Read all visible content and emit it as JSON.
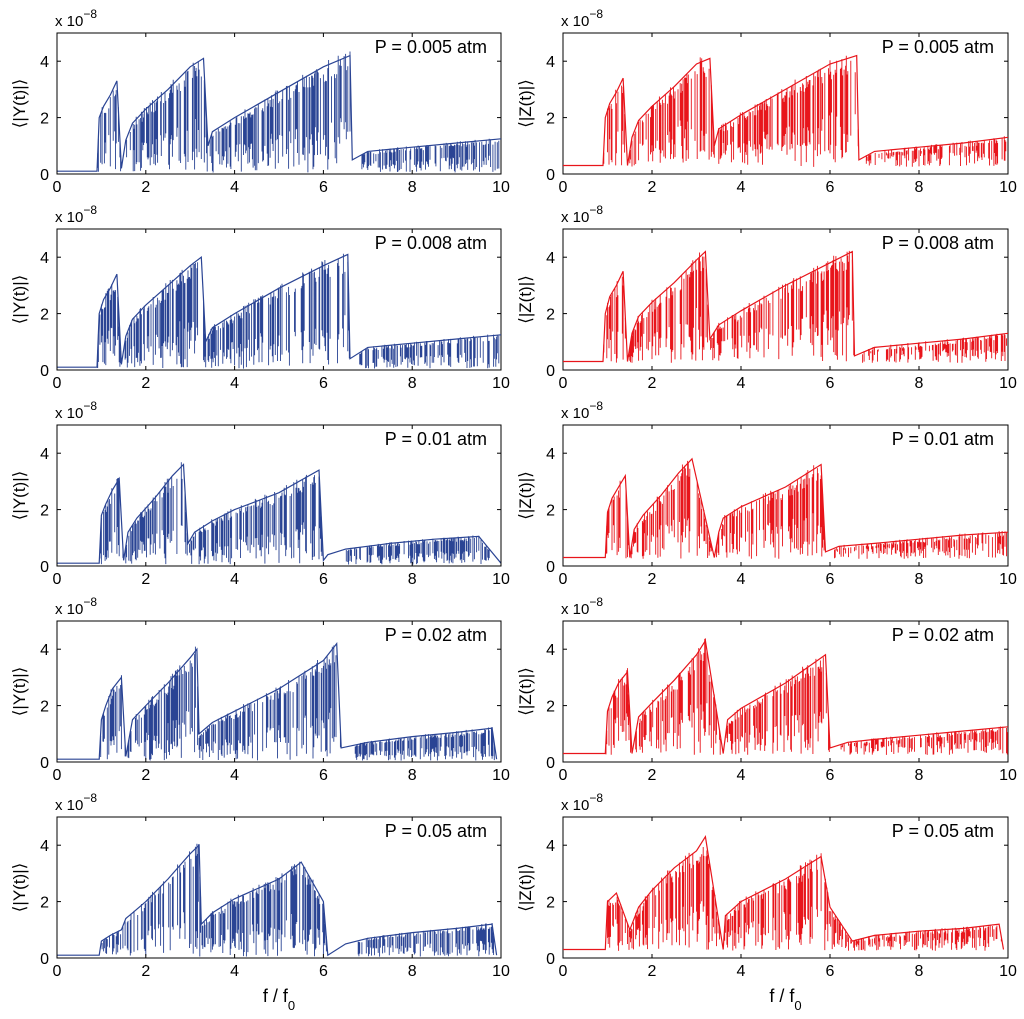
{
  "figure": {
    "xlabel": "f / f",
    "xlabel_sub": "0",
    "exponent_base": "x 10",
    "exponent_power": "−8",
    "colors": {
      "Y": "#2a4494",
      "Z": "#e8151b",
      "axis": "#000000"
    }
  },
  "chart_data": [
    {
      "type": "line",
      "column": "left",
      "row": 0,
      "ylabel": "⟨|Y(t)|⟩",
      "annotation": "P = 0.005 atm",
      "xlim": [
        0,
        10
      ],
      "ylim": [
        0,
        5
      ],
      "xticks": [
        0,
        2,
        4,
        6,
        8,
        10
      ],
      "yticks": [
        0,
        2,
        4
      ],
      "y_multiplier": "1e-8",
      "series": [
        {
          "color": "#2a4494",
          "x": [
            0,
            0.9,
            0.95,
            1.05,
            1.2,
            1.35,
            1.45,
            1.55,
            1.7,
            2.0,
            2.5,
            3.0,
            3.3,
            3.4,
            3.5,
            4.0,
            5.0,
            6.0,
            6.6,
            6.65,
            7.0,
            8.0,
            9.0,
            10.0
          ],
          "y": [
            0.1,
            0.1,
            2.0,
            2.4,
            2.8,
            3.3,
            0.2,
            1.2,
            1.8,
            2.3,
            3.0,
            3.8,
            4.1,
            1.0,
            1.5,
            2.0,
            2.9,
            3.8,
            4.2,
            0.5,
            0.8,
            0.95,
            1.1,
            1.25
          ]
        }
      ]
    },
    {
      "type": "line",
      "column": "right",
      "row": 0,
      "ylabel": "⟨|Z(t)|⟩",
      "annotation": "P = 0.005 atm",
      "xlim": [
        0,
        10
      ],
      "ylim": [
        0,
        5
      ],
      "xticks": [
        0,
        2,
        4,
        6,
        8,
        10
      ],
      "yticks": [
        0,
        2,
        4
      ],
      "y_multiplier": "1e-8",
      "series": [
        {
          "color": "#e8151b",
          "x": [
            0,
            0.9,
            0.95,
            1.05,
            1.2,
            1.35,
            1.45,
            1.55,
            1.7,
            2.0,
            2.5,
            3.0,
            3.3,
            3.4,
            3.5,
            4.0,
            5.0,
            6.0,
            6.6,
            6.65,
            7.0,
            8.0,
            9.0,
            10.0
          ],
          "y": [
            0.3,
            0.3,
            2.0,
            2.5,
            2.9,
            3.4,
            0.3,
            1.3,
            1.9,
            2.4,
            3.1,
            3.9,
            4.1,
            1.0,
            1.6,
            2.1,
            3.0,
            3.9,
            4.2,
            0.5,
            0.8,
            0.95,
            1.1,
            1.3
          ]
        }
      ]
    },
    {
      "type": "line",
      "column": "left",
      "row": 1,
      "ylabel": "⟨|Y(t)|⟩",
      "annotation": "P = 0.008 atm",
      "xlim": [
        0,
        10
      ],
      "ylim": [
        0,
        5
      ],
      "xticks": [
        0,
        2,
        4,
        6,
        8,
        10
      ],
      "yticks": [
        0,
        2,
        4
      ],
      "y_multiplier": "1e-8",
      "series": [
        {
          "color": "#2a4494",
          "x": [
            0,
            0.9,
            0.95,
            1.05,
            1.2,
            1.35,
            1.45,
            1.55,
            1.7,
            2.0,
            2.5,
            3.0,
            3.25,
            3.35,
            3.5,
            4.0,
            5.0,
            6.0,
            6.55,
            6.6,
            7.0,
            8.0,
            9.0,
            10.0
          ],
          "y": [
            0.1,
            0.1,
            2.0,
            2.5,
            2.9,
            3.4,
            0.2,
            1.2,
            1.8,
            2.3,
            3.0,
            3.7,
            4.0,
            1.0,
            1.5,
            2.0,
            2.9,
            3.7,
            4.1,
            0.4,
            0.8,
            0.95,
            1.1,
            1.25
          ]
        }
      ]
    },
    {
      "type": "line",
      "column": "right",
      "row": 1,
      "ylabel": "⟨|Z(t)|⟩",
      "annotation": "P = 0.008 atm",
      "xlim": [
        0,
        10
      ],
      "ylim": [
        0,
        5
      ],
      "xticks": [
        0,
        2,
        4,
        6,
        8,
        10
      ],
      "yticks": [
        0,
        2,
        4
      ],
      "y_multiplier": "1e-8",
      "series": [
        {
          "color": "#e8151b",
          "x": [
            0,
            0.9,
            0.95,
            1.05,
            1.2,
            1.35,
            1.45,
            1.55,
            1.7,
            2.0,
            2.5,
            3.0,
            3.2,
            3.3,
            3.5,
            4.0,
            5.0,
            6.0,
            6.5,
            6.55,
            7.0,
            8.0,
            9.0,
            10.0
          ],
          "y": [
            0.3,
            0.3,
            2.0,
            2.6,
            3.0,
            3.5,
            0.3,
            1.3,
            1.9,
            2.4,
            3.1,
            3.9,
            4.2,
            1.1,
            1.6,
            2.1,
            3.0,
            3.8,
            4.2,
            0.5,
            0.8,
            0.95,
            1.1,
            1.3
          ]
        }
      ]
    },
    {
      "type": "line",
      "column": "left",
      "row": 2,
      "ylabel": "⟨|Y(t)|⟩",
      "annotation": "P = 0.01 atm",
      "xlim": [
        0,
        10
      ],
      "ylim": [
        0,
        5
      ],
      "xticks": [
        0,
        2,
        4,
        6,
        8,
        10
      ],
      "yticks": [
        0,
        2,
        4
      ],
      "y_multiplier": "1e-8",
      "series": [
        {
          "color": "#2a4494",
          "x": [
            0,
            0.95,
            1.0,
            1.1,
            1.25,
            1.4,
            1.5,
            1.6,
            1.8,
            2.2,
            2.6,
            2.85,
            2.95,
            3.1,
            3.5,
            4.0,
            5.0,
            5.9,
            6.0,
            6.1,
            6.5,
            7.5,
            8.5,
            9.5,
            10.0
          ],
          "y": [
            0.1,
            0.1,
            1.8,
            2.2,
            2.7,
            3.1,
            0.2,
            1.2,
            1.7,
            2.4,
            3.2,
            3.6,
            0.8,
            1.2,
            1.6,
            2.0,
            2.6,
            3.4,
            0.2,
            0.4,
            0.6,
            0.8,
            0.95,
            1.05,
            0.1
          ]
        }
      ]
    },
    {
      "type": "line",
      "column": "right",
      "row": 2,
      "ylabel": "⟨|Z(t)|⟩",
      "annotation": "P = 0.01 atm",
      "xlim": [
        0,
        10
      ],
      "ylim": [
        0,
        5
      ],
      "xticks": [
        0,
        2,
        4,
        6,
        8,
        10
      ],
      "yticks": [
        0,
        2,
        4
      ],
      "y_multiplier": "1e-8",
      "series": [
        {
          "color": "#e8151b",
          "x": [
            0,
            0.95,
            1.0,
            1.1,
            1.25,
            1.4,
            1.5,
            1.6,
            1.8,
            2.2,
            2.6,
            2.9,
            3.4,
            3.5,
            3.6,
            4.0,
            5.0,
            5.8,
            5.9,
            6.2,
            7.0,
            8.0,
            9.0,
            10.0
          ],
          "y": [
            0.3,
            0.3,
            1.9,
            2.4,
            2.8,
            3.2,
            0.3,
            1.3,
            1.8,
            2.5,
            3.3,
            3.8,
            0.3,
            1.2,
            1.7,
            2.1,
            2.8,
            3.6,
            0.5,
            0.7,
            0.8,
            0.95,
            1.1,
            1.2
          ]
        }
      ]
    },
    {
      "type": "line",
      "column": "left",
      "row": 3,
      "ylabel": "⟨|Y(t)|⟩",
      "annotation": "P = 0.02 atm",
      "xlim": [
        0,
        10
      ],
      "ylim": [
        0,
        5
      ],
      "xticks": [
        0,
        2,
        4,
        6,
        8,
        10
      ],
      "yticks": [
        0,
        2,
        4
      ],
      "y_multiplier": "1e-8",
      "series": [
        {
          "color": "#2a4494",
          "x": [
            0,
            0.95,
            1.0,
            1.1,
            1.25,
            1.45,
            1.55,
            1.7,
            2.0,
            2.5,
            3.0,
            3.15,
            3.2,
            3.5,
            4.0,
            5.0,
            6.0,
            6.3,
            6.4,
            7.0,
            8.0,
            9.0,
            9.8,
            9.9
          ],
          "y": [
            0.1,
            0.1,
            1.5,
            2.0,
            2.6,
            3.0,
            0.2,
            1.5,
            2.0,
            2.8,
            3.7,
            4.0,
            1.0,
            1.4,
            1.8,
            2.6,
            3.6,
            4.2,
            0.5,
            0.7,
            0.9,
            1.05,
            1.2,
            0.1
          ]
        }
      ]
    },
    {
      "type": "line",
      "column": "right",
      "row": 3,
      "ylabel": "⟨|Z(t)|⟩",
      "annotation": "P = 0.02 atm",
      "xlim": [
        0,
        10
      ],
      "ylim": [
        0,
        5
      ],
      "xticks": [
        0,
        2,
        4,
        6,
        8,
        10
      ],
      "yticks": [
        0,
        2,
        4
      ],
      "y_multiplier": "1e-8",
      "series": [
        {
          "color": "#e8151b",
          "x": [
            0,
            0.95,
            1.0,
            1.1,
            1.25,
            1.45,
            1.55,
            1.7,
            2.0,
            2.5,
            3.0,
            3.2,
            3.6,
            3.7,
            4.0,
            5.0,
            5.9,
            6.0,
            6.4,
            7.0,
            8.0,
            9.0,
            10.0
          ],
          "y": [
            0.3,
            0.3,
            1.8,
            2.3,
            2.8,
            3.2,
            0.3,
            1.6,
            2.1,
            2.9,
            3.8,
            4.3,
            0.3,
            1.5,
            1.9,
            2.8,
            3.8,
            0.5,
            0.7,
            0.8,
            0.95,
            1.1,
            1.25
          ]
        }
      ]
    },
    {
      "type": "line",
      "column": "left",
      "row": 4,
      "ylabel": "⟨|Y(t)|⟩",
      "annotation": "P = 0.05 atm",
      "xlim": [
        0,
        10
      ],
      "ylim": [
        0,
        5
      ],
      "xticks": [
        0,
        2,
        4,
        6,
        8,
        10
      ],
      "yticks": [
        0,
        2,
        4
      ],
      "y_multiplier": "1e-8",
      "series": [
        {
          "color": "#2a4494",
          "x": [
            0,
            0.95,
            1.0,
            1.2,
            1.45,
            1.55,
            1.7,
            2.0,
            2.5,
            3.0,
            3.2,
            3.25,
            3.5,
            4.0,
            5.0,
            5.5,
            6.0,
            6.1,
            6.5,
            7.0,
            8.0,
            9.0,
            9.8,
            9.9
          ],
          "y": [
            0.1,
            0.1,
            0.6,
            0.8,
            1.0,
            1.4,
            1.6,
            2.0,
            2.8,
            3.7,
            4.0,
            1.2,
            1.6,
            2.1,
            2.8,
            3.4,
            2.0,
            0.1,
            0.5,
            0.7,
            0.9,
            1.05,
            1.2,
            0.1
          ]
        }
      ]
    },
    {
      "type": "line",
      "column": "right",
      "row": 4,
      "ylabel": "⟨|Z(t)|⟩",
      "annotation": "P = 0.05 atm",
      "xlim": [
        0,
        10
      ],
      "ylim": [
        0,
        5
      ],
      "xticks": [
        0,
        2,
        4,
        6,
        8,
        10
      ],
      "yticks": [
        0,
        2,
        4
      ],
      "y_multiplier": "1e-8",
      "series": [
        {
          "color": "#e8151b",
          "x": [
            0,
            0.95,
            1.0,
            1.2,
            1.5,
            1.6,
            1.7,
            2.0,
            2.5,
            3.0,
            3.2,
            3.6,
            3.65,
            4.0,
            5.0,
            5.8,
            6.0,
            6.5,
            7.0,
            8.0,
            9.0,
            9.8,
            9.9
          ],
          "y": [
            0.3,
            0.3,
            2.0,
            2.3,
            1.0,
            1.4,
            1.8,
            2.4,
            3.2,
            3.8,
            4.3,
            0.3,
            1.5,
            2.0,
            2.8,
            3.6,
            1.8,
            0.6,
            0.8,
            0.95,
            1.05,
            1.2,
            0.3
          ]
        }
      ]
    }
  ]
}
